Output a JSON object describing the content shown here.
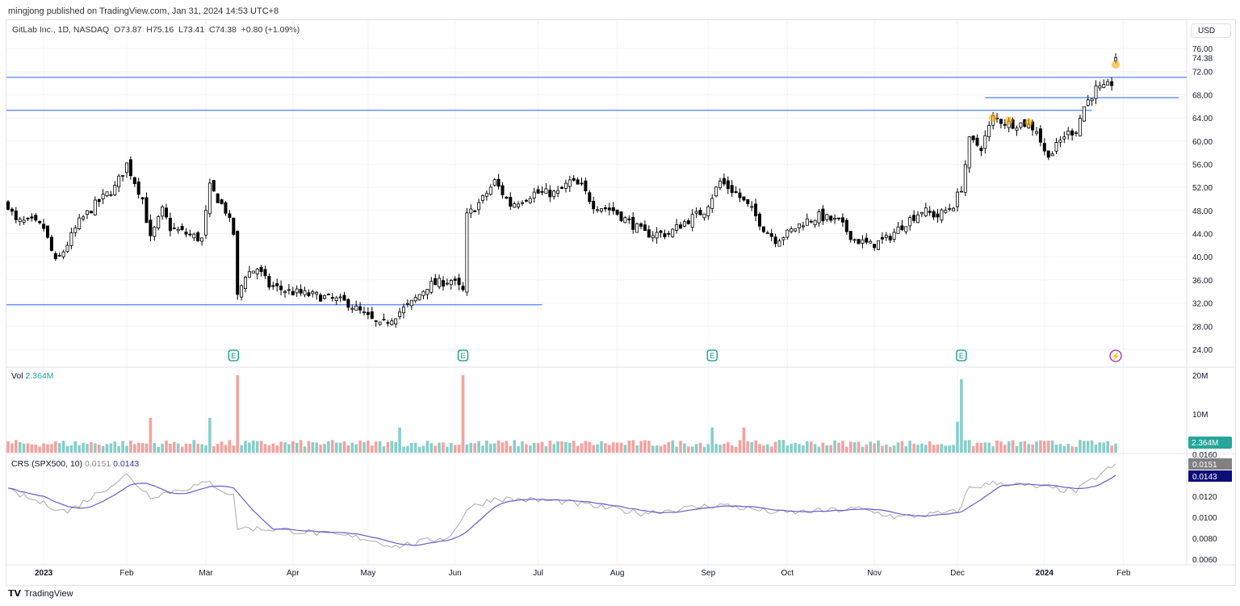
{
  "header": {
    "published": "mingjong published on TradingView.com, Jan 31, 2024 14:53 UTC+8",
    "symbol": "GitLab Inc., 1D, NASDAQ",
    "open": "O73.87",
    "high": "H75.16",
    "low": "L73.41",
    "close": "C74.38",
    "change": "+0.80 (+1.09%)",
    "currency": "USD"
  },
  "volume": {
    "label": "Vol",
    "value": "2.364M",
    "ticks": [
      "20M",
      "10M"
    ]
  },
  "crs": {
    "label": "CRS (SPX500, 10)",
    "v1": "0.0151",
    "v2": "0.0143",
    "ticks": [
      "0.0160",
      "0.0140",
      "0.0120",
      "0.0100",
      "0.0080",
      "0.0060"
    ]
  },
  "footer": {
    "brand": "TradingView"
  },
  "colors": {
    "up": "#26a69a",
    "down": "#ef5350",
    "line": "#2962ff",
    "ma": "#673ab7"
  },
  "chart_data": {
    "type": "candlestick",
    "title": "GitLab Inc., 1D, NASDAQ",
    "ylim": [
      24,
      76
    ],
    "price_ticks": [
      "76.00",
      "74.38",
      "72.00",
      "68.00",
      "64.00",
      "60.00",
      "56.00",
      "52.00",
      "48.00",
      "44.00",
      "40.00",
      "36.00",
      "32.00",
      "28.00",
      "24.00"
    ],
    "last_price": 74.38,
    "x_ticks": [
      "2023",
      "Feb",
      "Mar",
      "Apr",
      "May",
      "Jun",
      "Jul",
      "Aug",
      "Sep",
      "Oct",
      "Nov",
      "Dec",
      "2024",
      "Feb"
    ],
    "x_tick_days": [
      9,
      30,
      50,
      72,
      91,
      113,
      134,
      154,
      177,
      197,
      219,
      240,
      262,
      282
    ],
    "close_waypoints": [
      [
        0,
        49
      ],
      [
        2,
        46
      ],
      [
        6,
        46
      ],
      [
        9,
        45
      ],
      [
        12,
        39
      ],
      [
        14,
        41
      ],
      [
        18,
        46
      ],
      [
        22,
        49
      ],
      [
        27,
        52
      ],
      [
        30,
        56
      ],
      [
        32,
        53
      ],
      [
        34,
        50
      ],
      [
        36,
        43
      ],
      [
        39,
        48
      ],
      [
        41,
        45
      ],
      [
        45,
        44
      ],
      [
        49,
        43
      ],
      [
        51,
        52
      ],
      [
        53,
        50
      ],
      [
        55,
        48
      ],
      [
        57,
        44
      ],
      [
        58,
        33
      ],
      [
        60,
        37
      ],
      [
        63,
        38
      ],
      [
        66,
        35
      ],
      [
        71,
        34
      ],
      [
        80,
        33
      ],
      [
        86,
        32
      ],
      [
        90,
        30
      ],
      [
        94,
        28
      ],
      [
        98,
        30
      ],
      [
        102,
        32
      ],
      [
        106,
        35
      ],
      [
        112,
        36
      ],
      [
        115,
        34
      ],
      [
        116,
        47
      ],
      [
        120,
        50
      ],
      [
        123,
        53
      ],
      [
        127,
        49
      ],
      [
        133,
        51
      ],
      [
        139,
        51
      ],
      [
        142,
        53
      ],
      [
        145,
        52
      ],
      [
        148,
        49
      ],
      [
        153,
        48
      ],
      [
        157,
        46
      ],
      [
        161,
        44
      ],
      [
        167,
        44
      ],
      [
        171,
        46
      ],
      [
        176,
        48
      ],
      [
        180,
        53
      ],
      [
        184,
        51
      ],
      [
        188,
        48
      ],
      [
        191,
        45
      ],
      [
        194,
        43
      ],
      [
        197,
        44
      ],
      [
        201,
        46
      ],
      [
        205,
        47
      ],
      [
        210,
        46
      ],
      [
        214,
        43
      ],
      [
        218,
        42
      ],
      [
        222,
        43
      ],
      [
        227,
        46
      ],
      [
        231,
        48
      ],
      [
        235,
        47
      ],
      [
        239,
        49
      ],
      [
        241,
        52
      ],
      [
        243,
        60
      ],
      [
        246,
        59
      ],
      [
        249,
        64
      ],
      [
        253,
        63
      ],
      [
        257,
        63
      ],
      [
        260,
        62
      ],
      [
        262,
        58
      ],
      [
        264,
        58
      ],
      [
        267,
        61
      ],
      [
        270,
        62
      ],
      [
        272,
        66
      ],
      [
        275,
        69
      ],
      [
        277,
        69
      ],
      [
        279,
        70
      ],
      [
        280,
        74.38
      ]
    ],
    "horizontal_lines": [
      {
        "price": 71.0,
        "from_day": 0,
        "to_day": "end"
      },
      {
        "price": 65.3,
        "from_day": 0,
        "to_day": 274
      },
      {
        "price": 67.5,
        "from_day": 247,
        "to_day": 296
      },
      {
        "price": 31.7,
        "from_day": 0,
        "to_day": 135
      }
    ],
    "earnings_days": [
      57,
      115,
      178,
      241
    ],
    "volume_spikes": [
      [
        58,
        20
      ],
      [
        115,
        20
      ],
      [
        241,
        19
      ],
      [
        36,
        9
      ],
      [
        51,
        9
      ],
      [
        99,
        6.5
      ],
      [
        178,
        6.5
      ],
      [
        186,
        6.5
      ],
      [
        240,
        8
      ]
    ],
    "crs_waypoints": [
      [
        0,
        0.0125
      ],
      [
        15,
        0.0105
      ],
      [
        30,
        0.014
      ],
      [
        36,
        0.012
      ],
      [
        51,
        0.0133
      ],
      [
        57,
        0.012
      ],
      [
        58,
        0.009
      ],
      [
        70,
        0.0088
      ],
      [
        90,
        0.008
      ],
      [
        98,
        0.0072
      ],
      [
        112,
        0.0082
      ],
      [
        116,
        0.0108
      ],
      [
        123,
        0.0118
      ],
      [
        140,
        0.0115
      ],
      [
        160,
        0.0104
      ],
      [
        180,
        0.0112
      ],
      [
        195,
        0.0104
      ],
      [
        215,
        0.0108
      ],
      [
        225,
        0.01
      ],
      [
        240,
        0.0105
      ],
      [
        243,
        0.0128
      ],
      [
        250,
        0.0133
      ],
      [
        262,
        0.0128
      ],
      [
        270,
        0.0125
      ],
      [
        280,
        0.0151
      ]
    ]
  }
}
